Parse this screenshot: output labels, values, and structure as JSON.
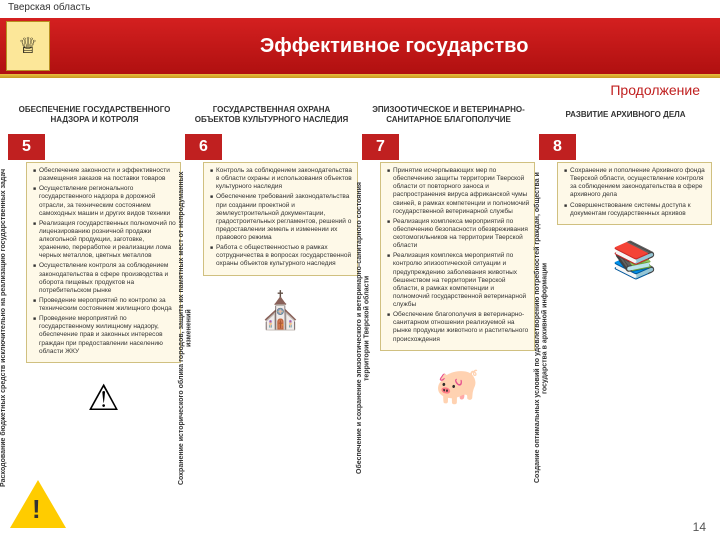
{
  "region": "Тверская область",
  "title": "Эффективное государство",
  "continuation": "Продолжение",
  "page": "14",
  "cols": [
    {
      "hdr": "ОБЕСПЕЧЕНИЕ ГОСУДАРСТВЕННОГО НАДЗОРА И КОТРОЛЯ",
      "num": "5",
      "vert": "Расходование бюджетных средств исключительно на реализацию государственных задач",
      "items": [
        "Обеспечение законности и эффективности размещения заказов на поставки товаров",
        "Осуществление регионального государственного надзора в дорожной отрасли, за техническим состоянием самоходных машин и других видов техники",
        "Реализация государственных полномочий по лицензированию розничной продажи алкогольной продукции, заготовке, хранению, переработке и реализации лома черных металлов, цветных металлов",
        "Осуществление контроля за соблюдением законодательства в сфере производства и оборота пищевых продуктов на потребительском рынке",
        "Проведение мероприятий по контролю за техническим состоянием жилищного фонда",
        "Проведение мероприятий по государственному жилищному надзору, обеспечение прав и законных интересов граждан при предоставлении населению области ЖКУ"
      ],
      "icon": "⚠"
    },
    {
      "hdr": "ГОСУДАРСТВЕННАЯ ОХРАНА ОБЪЕКТОВ КУЛЬТУРНОГО НАСЛЕДИЯ",
      "num": "6",
      "vert": "Сохранение исторического облика городов, защита их памятных мест от непродуманных изменений",
      "items": [
        "Контроль за соблюдением законодательства в области охраны и использования объектов культурного наследия",
        "Обеспечение требований законодательства при создании проектной и землеустроительной документации, градостроительных регламентов, решений о предоставлении земель и изменении их правового режима",
        "Работа с общественностью в рамках сотрудничества в вопросах государственной охраны объектов культурного наследия"
      ],
      "icon": "⛪"
    },
    {
      "hdr": "ЭПИЗООТИЧЕСКОЕ И ВЕТЕРИНАРНО-САНИТАРНОЕ БЛАГОПОЛУЧИЕ",
      "num": "7",
      "vert": "Обеспечение и сохранение эпизоотического и ветеринарно-санитарного состояния территории Тверской области",
      "items": [
        "Принятие исчерпывающих мер по обеспечению защиты территории Тверской области от повторного заноса и распространения вируса африканской чумы свиней, в рамках компетенции и полномочий государственной ветеринарной службы",
        "Реализация комплекса мероприятий по обеспечению безопасности обезвреживания скотомогильников на территории Тверской области",
        "Реализация комплекса мероприятий по контролю эпизоотической ситуации и предупреждению заболевания животных бешенством на территории Тверской области, в рамках компетенции и полномочий государственной ветеринарной службы",
        "Обеспечение благополучия в ветеринарно-санитарном отношении реализуемой на рынке продукции животного и растительного происхождения"
      ],
      "icon": "🐖"
    },
    {
      "hdr": "РАЗВИТИЕ АРХИВНОГО ДЕЛА",
      "num": "8",
      "vert": "Создание оптимальных условий по удовлетворению потребностей граждан, общества и государства в архивной информации",
      "items": [
        "Сохранение и пополнение Архивного фонда Тверской области, осуществление контроля за соблюдением законодательства в сфере архивного дела",
        "Совершенствование системы доступа к документам государственных архивов"
      ],
      "icon": "📚"
    }
  ]
}
